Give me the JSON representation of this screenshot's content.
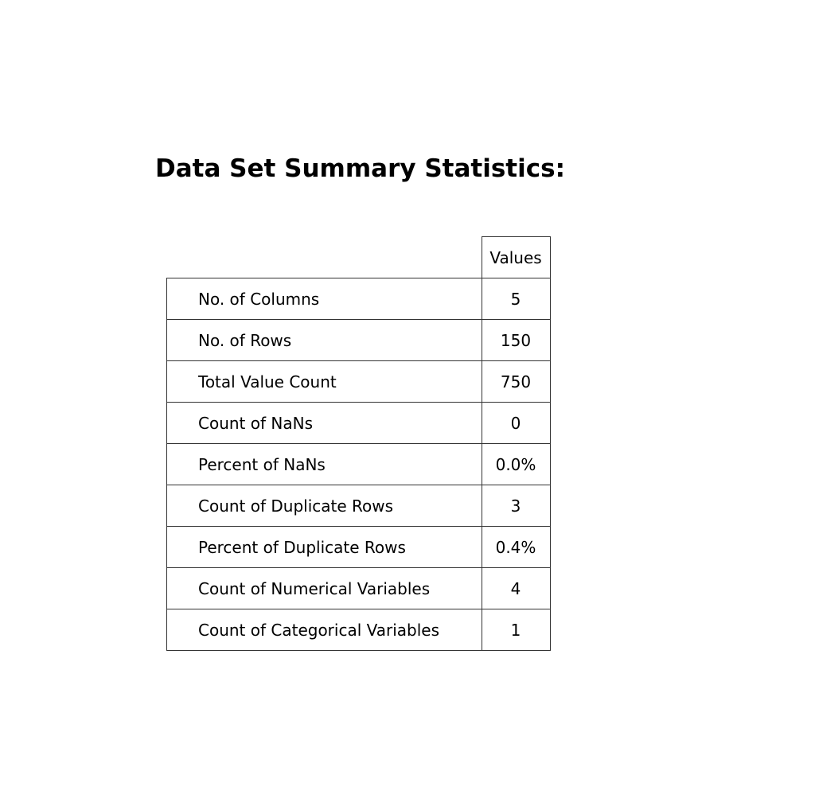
{
  "chart_data": {
    "type": "table",
    "title": "Data Set Summary Statistics:",
    "columns": [
      "",
      "Values"
    ],
    "rows": [
      {
        "label": "No. of Columns",
        "value": "5"
      },
      {
        "label": "No. of Rows",
        "value": "150"
      },
      {
        "label": "Total Value Count",
        "value": "750"
      },
      {
        "label": "Count of NaNs",
        "value": "0"
      },
      {
        "label": "Percent of NaNs",
        "value": "0.0%"
      },
      {
        "label": "Count of Duplicate Rows",
        "value": "3"
      },
      {
        "label": "Percent of Duplicate Rows",
        "value": "0.4%"
      },
      {
        "label": "Count of Numerical Variables",
        "value": "4"
      },
      {
        "label": "Count of Categorical Variables",
        "value": "1"
      }
    ]
  }
}
